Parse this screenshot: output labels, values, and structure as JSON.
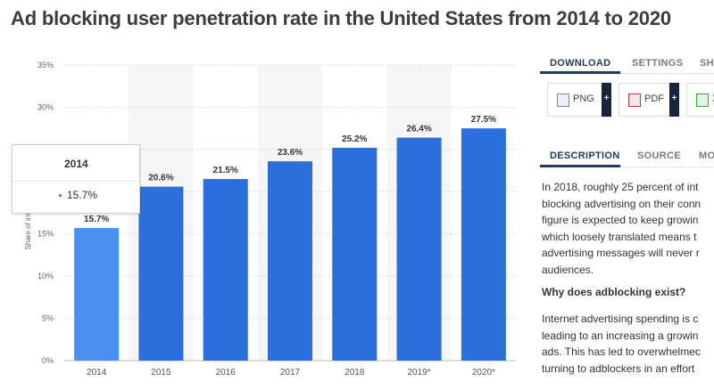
{
  "page_title": "Ad blocking user penetration rate in the United States from 2014 to 2020",
  "colors": {
    "bar": "#2a6fdb",
    "bar_highlight": "#4a90f0",
    "accent": "#223a5e"
  },
  "chart_data": {
    "type": "bar",
    "categories": [
      "2014",
      "2015",
      "2016",
      "2017",
      "2018",
      "2019*",
      "2020*"
    ],
    "values": [
      15.7,
      20.6,
      21.5,
      23.6,
      25.2,
      26.4,
      27.5
    ],
    "value_labels": [
      "15.7%",
      "20.6%",
      "21.5%",
      "23.6%",
      "25.2%",
      "26.4%",
      "27.5%"
    ],
    "ylabel": "Share of internet users",
    "ylim": [
      0,
      35
    ],
    "yticks": [
      0,
      5,
      10,
      15,
      20,
      25,
      30,
      35
    ],
    "ytick_labels": [
      "0%",
      "5%",
      "10%",
      "15%",
      "20%",
      "25%",
      "30%",
      "35%"
    ],
    "grid": true,
    "highlighted_index": 0
  },
  "tooltip": {
    "title": "2014",
    "value": "15.7%"
  },
  "sidebar": {
    "tabs": [
      "DOWNLOAD",
      "SETTINGS",
      "SHA"
    ],
    "downloads": [
      "PNG",
      "PDF",
      "X"
    ],
    "plus": "+",
    "info_tabs": [
      "DESCRIPTION",
      "SOURCE",
      "MO"
    ],
    "description_lines": [
      "In 2018, roughly 25 percent of int",
      "blocking advertising on their conn",
      "figure is expected to keep growin",
      "which loosely translated means t",
      "advertising messages will never r",
      "audiences."
    ],
    "heading": "Why does adblocking exist?",
    "description_lines_2": [
      "Internet advertising spending is c",
      "leading to an increasing a growin",
      "ads. This has led to overwhelmec",
      "turning to adblockers in an effort"
    ]
  }
}
